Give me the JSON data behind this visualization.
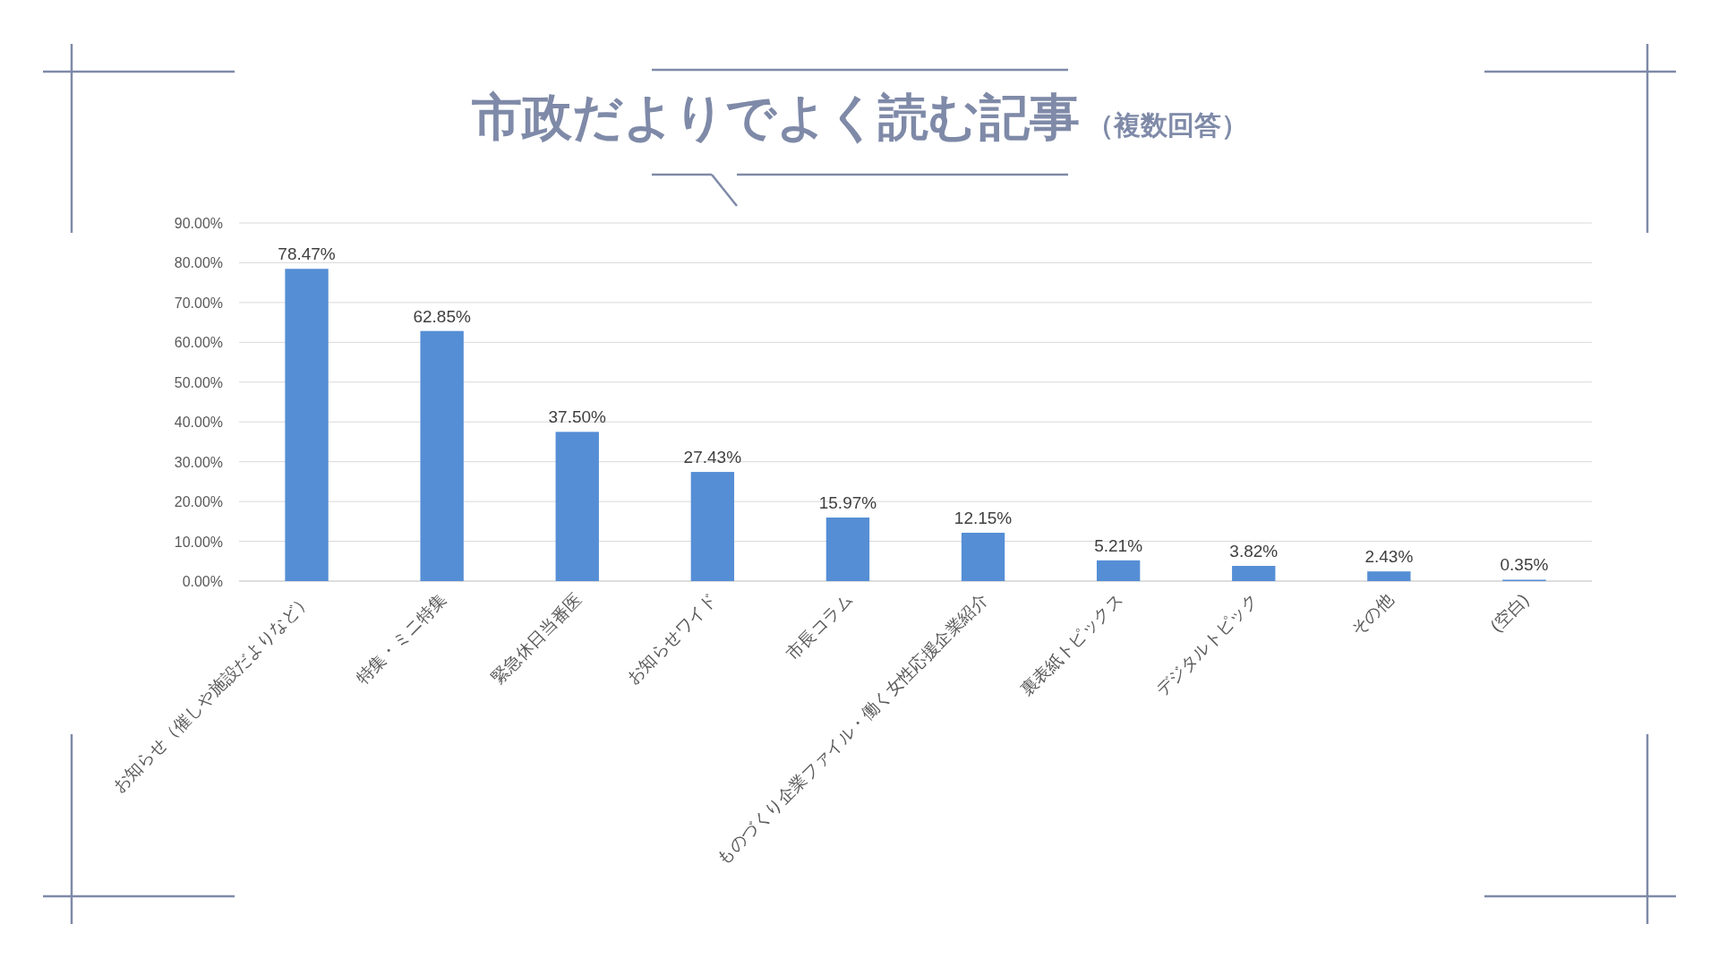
{
  "chart_data": {
    "type": "bar",
    "title": "市政だよりでよく読む記事",
    "subtitle": "（複数回答）",
    "categories": [
      "お知らせ（催しや施設だよりなど）",
      "特集・ミニ特集",
      "緊急休日当番医",
      "お知らせワイド",
      "市長コラム",
      "ものづくり企業ファイル・働く女性応援企業紹介",
      "裏表紙トピックス",
      "デジタルトピック",
      "その他",
      "(空白)"
    ],
    "values": [
      78.47,
      62.85,
      37.5,
      27.43,
      15.97,
      12.15,
      5.21,
      3.82,
      2.43,
      0.35
    ],
    "value_labels": [
      "78.47%",
      "62.85%",
      "37.50%",
      "27.43%",
      "15.97%",
      "12.15%",
      "5.21%",
      "3.82%",
      "2.43%",
      "0.35%"
    ],
    "color": "#558ed5",
    "ylim": [
      0,
      90
    ],
    "yticks": [
      {
        "value": 0,
        "label": "0.00%"
      },
      {
        "value": 10,
        "label": "10.00%"
      },
      {
        "value": 20,
        "label": "20.00%"
      },
      {
        "value": 30,
        "label": "30.00%"
      },
      {
        "value": 40,
        "label": "40.00%"
      },
      {
        "value": 50,
        "label": "50.00%"
      },
      {
        "value": 60,
        "label": "60.00%"
      },
      {
        "value": 70,
        "label": "70.00%"
      },
      {
        "value": 80,
        "label": "80.00%"
      },
      {
        "value": 90,
        "label": "90.00%"
      }
    ],
    "grid": "y"
  }
}
